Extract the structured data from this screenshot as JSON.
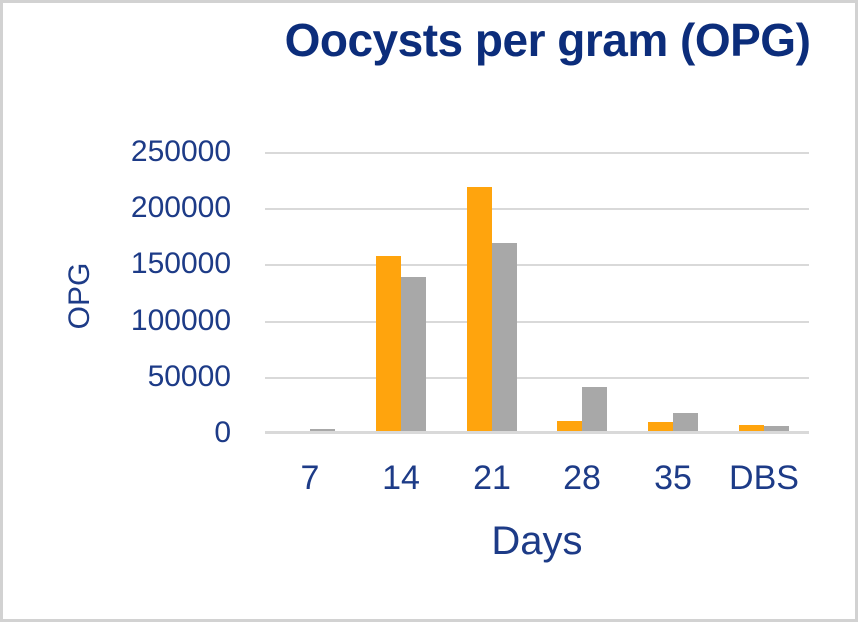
{
  "colors": {
    "title_text": "#0c2d7b",
    "axis_text": "#1d3b87",
    "series_orange": "#FFA40D",
    "series_gray": "#A8A8A8",
    "gridline": "#D9D9D9",
    "axis_line": "#D9D9D9",
    "frame_border": "#D2D2D2",
    "background": "#FFFFFF"
  },
  "chart_data": {
    "type": "bar",
    "title": "Oocysts per gram (OPG)",
    "xlabel": "Days",
    "ylabel": "OPG",
    "categories": [
      "7",
      "14",
      "21",
      "28",
      "35",
      "DBS"
    ],
    "series": [
      {
        "name": "orange",
        "color": "#FFA40D",
        "values": [
          0,
          156000,
          217000,
          9000,
          8000,
          5000
        ]
      },
      {
        "name": "gray",
        "color": "#A8A8A8",
        "values": [
          1500,
          137000,
          167000,
          39000,
          16000,
          4500
        ]
      }
    ],
    "ylim": [
      0,
      250000
    ],
    "ytick_interval": 50000,
    "yticks": [
      "250000",
      "200000",
      "150000",
      "100000",
      "50000",
      "0"
    ],
    "grid": true,
    "legend": "none"
  }
}
